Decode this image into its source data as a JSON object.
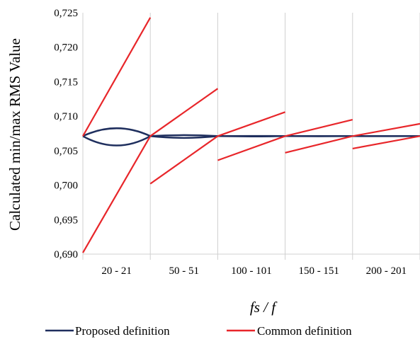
{
  "chart_data": {
    "type": "line",
    "xlabel": "fs / f",
    "ylabel": "Calculated min/max  RMS Value",
    "ylim": [
      0.69,
      0.725
    ],
    "y_ticks": [
      "0,690",
      "0,695",
      "0,700",
      "0,705",
      "0,710",
      "0,715",
      "0,720",
      "0,725"
    ],
    "categories": [
      "20 - 21",
      "50 - 51",
      "100 - 101",
      "150 - 151",
      "200 - 201"
    ],
    "grid": "vertical",
    "legend_position": "bottom",
    "series": [
      {
        "name": "Proposed definition",
        "color": "#1f2f5e",
        "segments": [
          {
            "category": 0,
            "max_line": [
              0.70711,
              0.70825,
              0.70711
            ],
            "min_line": [
              0.70711,
              0.70575,
              0.70711
            ]
          },
          {
            "category": 1,
            "max_line": [
              0.70711,
              0.70725,
              0.70711
            ],
            "min_line": [
              0.70711,
              0.70685,
              0.70711
            ]
          },
          {
            "category": 2,
            "max_line": [
              0.70711,
              0.70713,
              0.70711
            ],
            "min_line": [
              0.70711,
              0.70707,
              0.70711
            ]
          },
          {
            "category": 3,
            "max_line": [
              0.70711,
              0.70712,
              0.70711
            ],
            "min_line": [
              0.70711,
              0.70709,
              0.70711
            ]
          },
          {
            "category": 4,
            "max_line": [
              0.70711,
              0.70711,
              0.70711
            ],
            "min_line": [
              0.70711,
              0.7071,
              0.70711
            ]
          }
        ]
      },
      {
        "name": "Common definition",
        "color": "#e8262a",
        "segments": [
          {
            "category": 0,
            "max_line": [
              0.70711,
              0.7243
            ],
            "min_line": [
              0.6902,
              0.70711
            ]
          },
          {
            "category": 1,
            "max_line": [
              0.70711,
              0.714
            ],
            "min_line": [
              0.7002,
              0.70711
            ]
          },
          {
            "category": 2,
            "max_line": [
              0.70711,
              0.7106
            ],
            "min_line": [
              0.7036,
              0.70711
            ]
          },
          {
            "category": 3,
            "max_line": [
              0.70711,
              0.7095
            ],
            "min_line": [
              0.7047,
              0.70711
            ]
          },
          {
            "category": 4,
            "max_line": [
              0.70711,
              0.7089
            ],
            "min_line": [
              0.7053,
              0.70711
            ]
          }
        ]
      }
    ]
  }
}
